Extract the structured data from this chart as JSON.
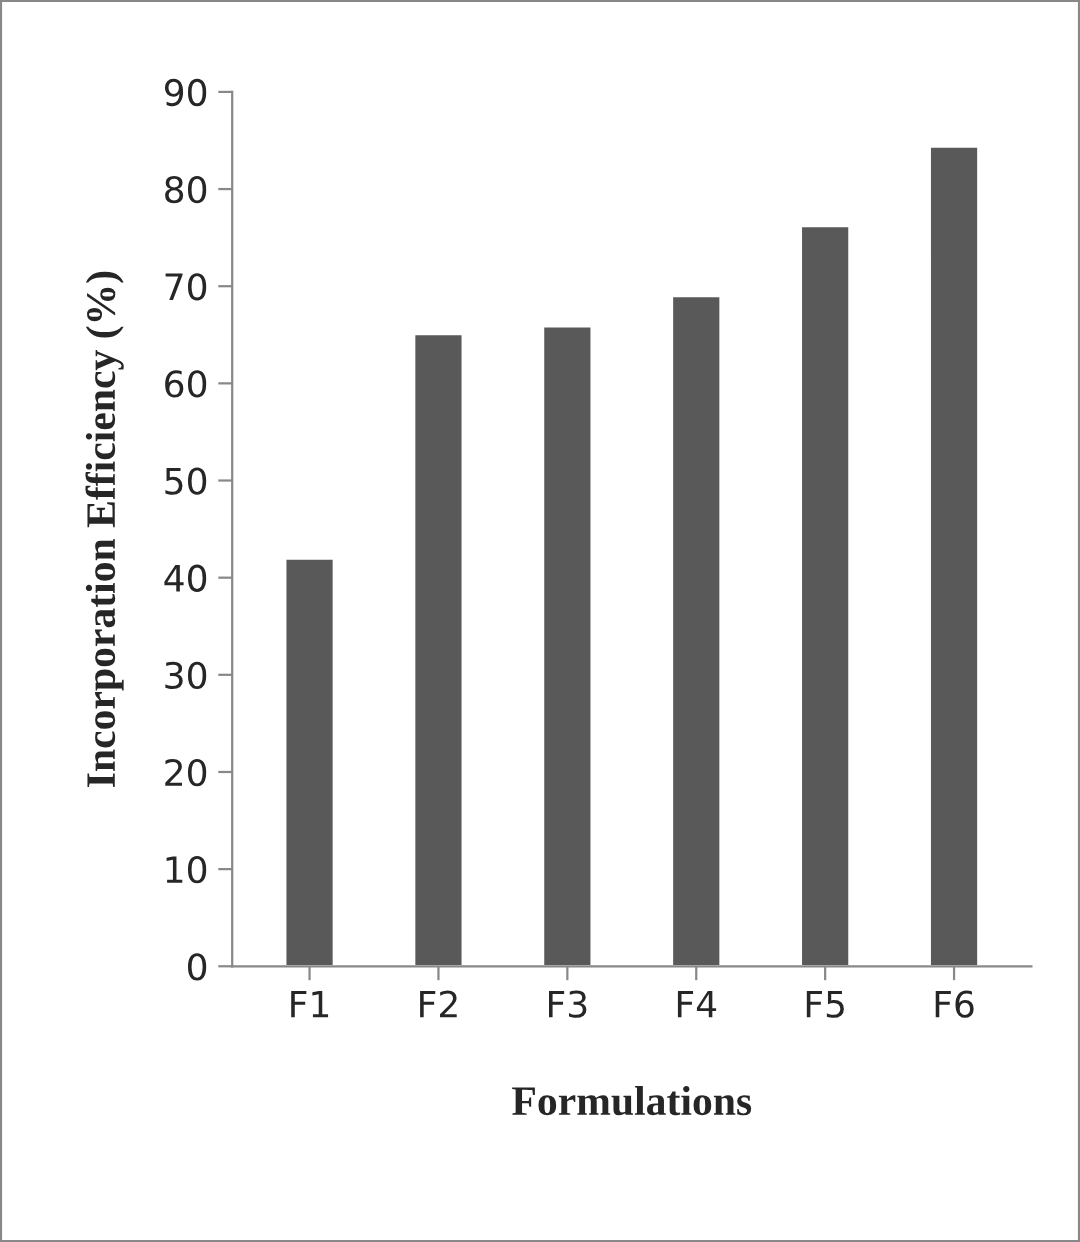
{
  "chart_data": {
    "type": "bar",
    "xlabel": "Formulations",
    "ylabel": "Incorporation Efficiency (%)",
    "categories": [
      "F1",
      "F2",
      "F3",
      "F4",
      "F5",
      "F6"
    ],
    "values": [
      42,
      65.1,
      65.9,
      69,
      76.2,
      84.4
    ],
    "color": "#595959",
    "ylim": [
      0,
      90
    ],
    "yticks": [
      0,
      10,
      20,
      30,
      40,
      50,
      60,
      70,
      80,
      90
    ],
    "grid": false,
    "legend": false
  }
}
